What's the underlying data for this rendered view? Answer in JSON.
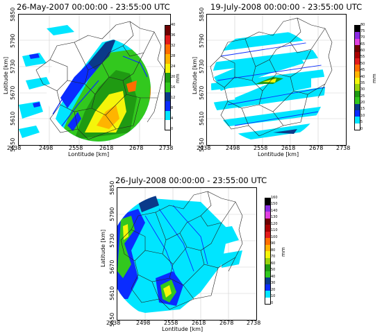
{
  "common": {
    "xlabel": "Lontitude [km]",
    "ylabel": "Latitude [km]",
    "xticks": [
      "2438",
      "2498",
      "2558",
      "2618",
      "2678",
      "2738"
    ],
    "yticks": [
      "5550",
      "5610",
      "5670",
      "5730",
      "5790",
      "5850"
    ],
    "unit": "mm"
  },
  "panels": [
    {
      "title": "26-May-2007 00:00:00 - 23:55:00 UTC",
      "colorbar": {
        "ticks": [
          "0",
          "4",
          "8",
          "12",
          "16",
          "20",
          "24",
          "28",
          "32",
          "36",
          "40"
        ],
        "colors": [
          "#ffffff",
          "#00e5ff",
          "#0a2cff",
          "#0a3a8a",
          "#32c81e",
          "#1f9a12",
          "#f5f50a",
          "#ffb400",
          "#ff6e00",
          "#e21b1b",
          "#6e0000"
        ]
      }
    },
    {
      "title": "19-July-2008 00:00:00 - 23:55:00 UTC",
      "colorbar": {
        "ticks": [
          "0",
          "5",
          "10",
          "15",
          "20",
          "25",
          "30",
          "35",
          "40",
          "45",
          "50",
          "55",
          "60",
          "65",
          "70",
          "75",
          "80"
        ],
        "colors": [
          "#ffffff",
          "#00e5ff",
          "#0a2cff",
          "#0a3a8a",
          "#32c81e",
          "#1f9a12",
          "#9ad20a",
          "#f5f50a",
          "#ffb400",
          "#ff6e00",
          "#e21b1b",
          "#aa0000",
          "#6e0000",
          "#e040e0",
          "#8a2be2",
          "#000000"
        ]
      }
    },
    {
      "title": "26-July-2008 00:00:00 - 23:55:00 UTC",
      "colorbar": {
        "ticks": [
          "0",
          "10",
          "20",
          "30",
          "40",
          "50",
          "60",
          "70",
          "80",
          "90",
          "100",
          "110",
          "120",
          "130",
          "140",
          "150",
          "160"
        ],
        "colors": [
          "#ffffff",
          "#00e5ff",
          "#0a2cff",
          "#0a3a8a",
          "#32c81e",
          "#1f9a12",
          "#9ad20a",
          "#f5f50a",
          "#ffb400",
          "#ff6e00",
          "#e21b1b",
          "#aa0000",
          "#6e0000",
          "#e040e0",
          "#8a2be2",
          "#000000"
        ]
      }
    }
  ]
}
